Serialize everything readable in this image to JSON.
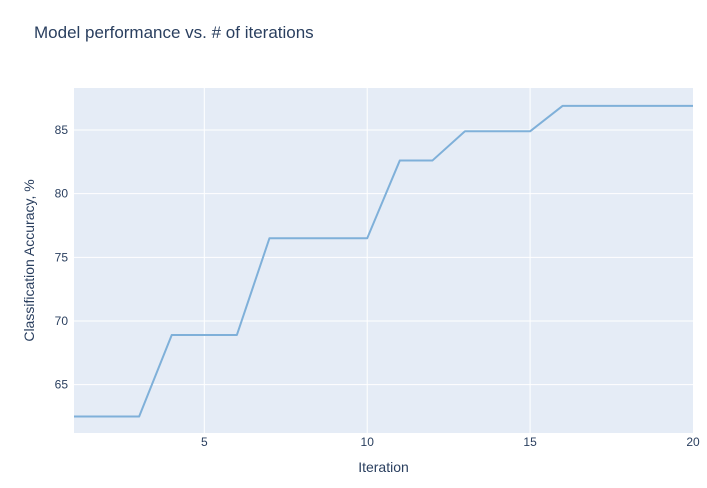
{
  "chart_data": {
    "type": "line",
    "title": "Model performance vs. # of iterations",
    "xlabel": "Iteration",
    "ylabel": "Classification Accuracy, %",
    "xlim": [
      1,
      20
    ],
    "ylim": [
      61.2,
      88.3
    ],
    "xticks": [
      5,
      10,
      15,
      20
    ],
    "yticks": [
      65,
      70,
      75,
      80,
      85
    ],
    "grid": true,
    "series": [
      {
        "color": "#7fb0d9",
        "x": [
          1,
          2,
          3,
          4,
          5,
          6,
          7,
          8,
          9,
          10,
          11,
          12,
          13,
          14,
          15,
          16,
          17,
          18,
          19,
          20
        ],
        "y": [
          62.5,
          62.5,
          62.5,
          68.9,
          68.9,
          68.9,
          76.5,
          76.5,
          76.5,
          76.5,
          82.6,
          82.6,
          84.9,
          84.9,
          84.9,
          86.9,
          86.9,
          86.9,
          86.9,
          86.9
        ]
      }
    ],
    "colors": {
      "plot_bg": "#e5ecf6",
      "grid": "#ffffff",
      "text": "#2a3f5f"
    }
  }
}
